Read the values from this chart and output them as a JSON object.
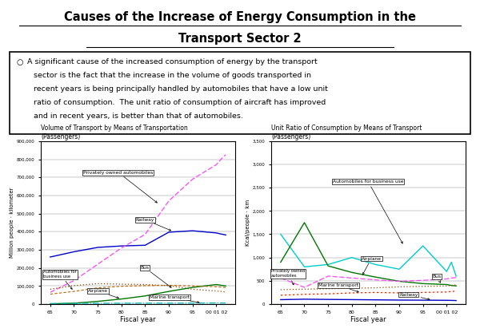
{
  "title_line1": "Causes of the Increase of Energy Consumption in the",
  "title_line2": "Transport Sector 2",
  "title_bg": "#c8d8e8",
  "bullet_text_lines": [
    "A significant cause of the increased consumption of energy by the transport",
    "sector is the fact that the increase in the volume of goods transported in",
    "recent years is being principally handled by automobiles that have a low unit",
    "ratio of consumption.  The unit ratio of consumption of aircraft has improved",
    "and in recent years, is better than that of automobiles."
  ],
  "chart1_title_l1": "Volume of Transport by Means of Transportation",
  "chart1_title_l2": "(Passengers)",
  "chart2_title_l1": "Unit Ratio of Consumption by Means of Transport",
  "chart2_title_l2": "(Passengers)",
  "chart1_ylabel": "Million people · kilometer",
  "chart2_ylabel": "Kcal/people · km",
  "xlabel": "Fiscal year",
  "year_nums": [
    65,
    70,
    75,
    80,
    85,
    90,
    95,
    100,
    101,
    102
  ],
  "chart1_yticks": [
    0,
    100000,
    200000,
    300000,
    400000,
    500000,
    600000,
    700000,
    800000,
    900000
  ],
  "chart1_yticklabels": [
    "0",
    "100,000",
    "200,000",
    "300,000",
    "400,000",
    "500,000",
    "600,000",
    "700,000",
    "800,000",
    "900,000"
  ],
  "chart2_yticks": [
    0,
    500,
    1000,
    1500,
    2000,
    2500,
    3000,
    3500
  ],
  "chart2_yticklabels": [
    "0",
    "500",
    "1,000",
    "1,500",
    "2,000",
    "2,500",
    "3,000",
    "3,500"
  ],
  "xtick_pos": [
    65,
    70,
    75,
    80,
    85,
    90,
    95,
    100
  ],
  "xtick_labels": [
    "65",
    "70",
    "75",
    "80",
    "85",
    "90",
    "95",
    "00 01 02"
  ],
  "chart1": {
    "railway": [
      260000,
      289000,
      313000,
      321000,
      325000,
      397000,
      405000,
      393000,
      387000,
      382000
    ],
    "private_auto": [
      65000,
      130000,
      220000,
      310000,
      385000,
      570000,
      690000,
      770000,
      800000,
      825000
    ],
    "bus": [
      82000,
      102000,
      113000,
      110000,
      108000,
      102000,
      82000,
      72000,
      70000,
      67000
    ],
    "airplane": [
      1000,
      5000,
      15000,
      28000,
      45000,
      70000,
      92000,
      108000,
      104000,
      100000
    ],
    "marine": [
      3000,
      4000,
      4500,
      4800,
      5200,
      5000,
      5500,
      6000,
      6000,
      5800
    ],
    "business_auto": [
      55000,
      70000,
      90000,
      98000,
      102000,
      104000,
      100000,
      96000,
      94000,
      91000
    ]
  },
  "chart2": {
    "business_auto": [
      1500,
      800,
      850,
      1000,
      850,
      750,
      1250,
      700,
      900,
      600
    ],
    "airplane": [
      900,
      1750,
      820,
      680,
      580,
      490,
      440,
      420,
      400,
      390
    ],
    "private_auto": [
      560,
      360,
      600,
      560,
      520,
      490,
      510,
      540,
      560,
      570
    ],
    "marine": [
      190,
      210,
      220,
      240,
      250,
      240,
      250,
      260,
      270,
      280
    ],
    "railway": [
      95,
      105,
      100,
      96,
      91,
      86,
      84,
      81,
      79,
      76
    ],
    "bus": [
      310,
      320,
      330,
      340,
      350,
      370,
      380,
      390,
      400,
      410
    ]
  },
  "colors": {
    "railway": "#0000cc",
    "private_auto": "#ff44ff",
    "bus": "#884400",
    "airplane": "#007700",
    "marine": "#00bbbb",
    "business_auto": "#00cccc",
    "business_auto2": "#00cccc",
    "marine2": "#dd3300"
  }
}
